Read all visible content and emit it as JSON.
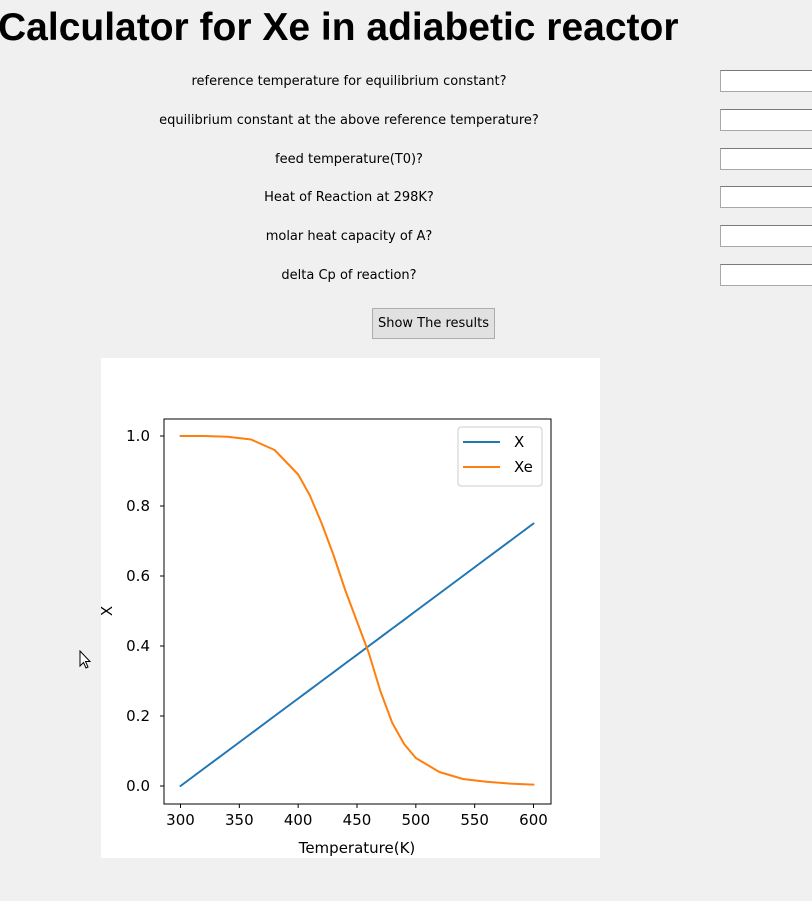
{
  "window": {
    "title": "Calculator for Xe in adiabetic reactor"
  },
  "form": {
    "fields": [
      {
        "label": "reference temperature for equilibrium constant?",
        "value": ""
      },
      {
        "label": "equilibrium constant at the above reference temperature?",
        "value": ""
      },
      {
        "label": "feed temperature(T0)?",
        "value": ""
      },
      {
        "label": "Heat of Reaction at 298K?",
        "value": ""
      },
      {
        "label": "molar heat capacity of A?",
        "value": ""
      },
      {
        "label": "delta Cp of reaction?",
        "value": ""
      }
    ]
  },
  "show_button": {
    "label": "Show The results"
  },
  "chart_data": {
    "type": "line",
    "title": "",
    "xlabel": "Temperature(K)",
    "ylabel": "X",
    "xlim": [
      300,
      600
    ],
    "ylim": [
      0.0,
      1.0
    ],
    "xticks": [
      300,
      350,
      400,
      450,
      500,
      550,
      600
    ],
    "yticks": [
      0.0,
      0.2,
      0.4,
      0.6,
      0.8,
      1.0
    ],
    "xtick_labels": [
      "300",
      "350",
      "400",
      "450",
      "500",
      "550",
      "600"
    ],
    "ytick_labels": [
      "0.0",
      "0.2",
      "0.4",
      "0.6",
      "0.8",
      "1.0"
    ],
    "grid": false,
    "legend": "top-right",
    "x": [
      300,
      320,
      340,
      360,
      380,
      400,
      410,
      420,
      430,
      440,
      450,
      460,
      470,
      480,
      490,
      500,
      520,
      540,
      560,
      580,
      600
    ],
    "series": [
      {
        "name": "X",
        "color": "#1f77b4",
        "values": [
          0.0,
          0.05,
          0.1,
          0.15,
          0.2,
          0.25,
          0.275,
          0.3,
          0.325,
          0.35,
          0.375,
          0.4,
          0.425,
          0.45,
          0.475,
          0.5,
          0.55,
          0.6,
          0.65,
          0.7,
          0.75
        ]
      },
      {
        "name": "Xe",
        "color": "#ff7f0e",
        "values": [
          1.0,
          1.0,
          0.998,
          0.99,
          0.96,
          0.89,
          0.83,
          0.75,
          0.66,
          0.56,
          0.47,
          0.38,
          0.27,
          0.18,
          0.12,
          0.08,
          0.04,
          0.02,
          0.012,
          0.007,
          0.004
        ]
      }
    ]
  }
}
